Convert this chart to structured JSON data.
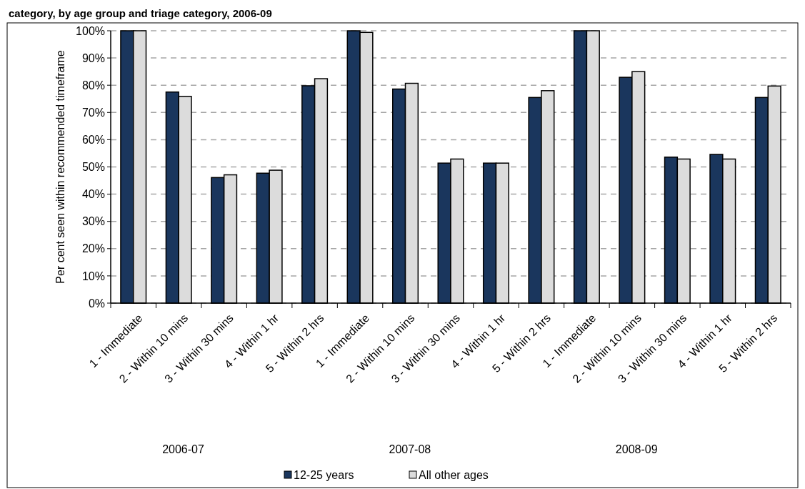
{
  "chart_data": {
    "type": "bar",
    "title": "category, by age group and triage category, 2006-09",
    "ylabel": "Per cent seen within recommended timeframe",
    "categories": [
      "1 - Immediate",
      "2 - Within 10 mins",
      "3 - Within 30 mins",
      "4 - Within 1 hr",
      "5 - Within 2 hrs",
      "1 - Immediate",
      "2 - Within 10 mins",
      "3 - Within 30 mins",
      "4 - Within 1 hr",
      "5 - Within 2 hrs",
      "1 - Immediate",
      "2 - Within 10 mins",
      "3 - Within 30 mins",
      "4 - Within 1 hr",
      "5 - Within 2 hrs"
    ],
    "series": [
      {
        "name": "12-25 years",
        "color": "#1a365d",
        "values": [
          100,
          77.5,
          46.1,
          47.7,
          79.8,
          100,
          78.6,
          51.4,
          51.4,
          75.5,
          100,
          82.9,
          53.6,
          54.6,
          75.5
        ]
      },
      {
        "name": "All other ages",
        "color": "#dcdcdc",
        "values": [
          100,
          75.9,
          47.1,
          48.8,
          82.4,
          99.4,
          80.7,
          52.9,
          51.4,
          78.0,
          100,
          85.0,
          52.9,
          52.9,
          79.7
        ]
      }
    ],
    "annotations": [
      "2006-07",
      "2007-08",
      "2008-09"
    ],
    "ylim": [
      0,
      100
    ],
    "yticks": [
      {
        "value": 0,
        "label": "0%"
      },
      {
        "value": 10,
        "label": "10%"
      },
      {
        "value": 20,
        "label": "20%"
      },
      {
        "value": 30,
        "label": "30%"
      },
      {
        "value": 40,
        "label": "40%"
      },
      {
        "value": 50,
        "label": "50%"
      },
      {
        "value": 60,
        "label": "60%"
      },
      {
        "value": 70,
        "label": "70%"
      },
      {
        "value": 80,
        "label": "80%"
      },
      {
        "value": 90,
        "label": "90%"
      },
      {
        "value": 100,
        "label": "100%"
      }
    ],
    "grid": "y",
    "legend": "bottom"
  }
}
